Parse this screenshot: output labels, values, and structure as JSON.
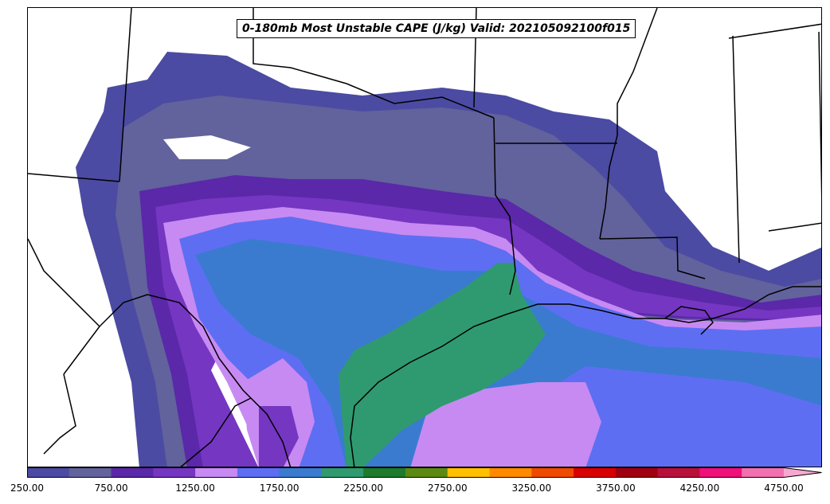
{
  "title": "0-180mb Most Unstable CAPE (J/kg) Valid: 202105092100f015",
  "colorbar": {
    "colors": [
      "#4b4ba3",
      "#62629c",
      "#5a28a8",
      "#7536c2",
      "#c78af2",
      "#5e6ef2",
      "#3a7bd0",
      "#2f9a70",
      "#1e7a2c",
      "#5c8a10",
      "#ffc000",
      "#ff8a00",
      "#f04a00",
      "#d80000",
      "#a00010",
      "#b8103a",
      "#f0107a",
      "#f070b0",
      "#f8a8d0"
    ],
    "tick_labels": [
      "250.00",
      "750.00",
      "1250.00",
      "1750.00",
      "2250.00",
      "2750.00",
      "3250.00",
      "3750.00",
      "4250.00",
      "4750.00"
    ]
  },
  "map": {
    "field": "Most Unstable CAPE",
    "units": "J/kg"
  }
}
